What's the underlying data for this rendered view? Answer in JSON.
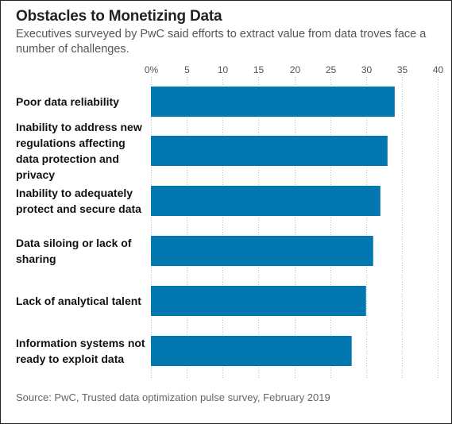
{
  "title": "Obstacles to Monetizing Data",
  "subtitle": "Executives surveyed by PwC said efforts to extract value from data troves face a number of challenges.",
  "source": "Source: PwC, Trusted data optimization pulse survey, February 2019",
  "colors": {
    "bar": "#0277b0",
    "grid": "#bbbbbb",
    "label": "#111111",
    "tick": "#555555"
  },
  "chart_data": {
    "type": "bar",
    "orientation": "horizontal",
    "categories": [
      "Poor data reliability",
      "Inability to address new regulations affecting data protection and privacy",
      "Inability to adequately protect and secure data",
      "Data siloing or lack of sharing",
      "Lack of analytical talent",
      "Information systems not ready to exploit data"
    ],
    "category_lines": [
      [
        "Poor data reliability"
      ],
      [
        "Inability to address new",
        "regulations affecting",
        "data protection and",
        "privacy"
      ],
      [
        "Inability to adequately",
        "protect and secure data"
      ],
      [
        "Data siloing or lack of",
        "sharing"
      ],
      [
        "Lack of analytical talent"
      ],
      [
        "Information systems not",
        "ready to exploit data"
      ]
    ],
    "values": [
      34,
      33,
      32,
      31,
      30,
      28
    ],
    "xlim": [
      0,
      40
    ],
    "ticks": [
      0,
      5,
      10,
      15,
      20,
      25,
      30,
      35,
      40
    ],
    "tick_labels": [
      "0%",
      "5",
      "10",
      "15",
      "20",
      "25",
      "30",
      "35",
      "40"
    ],
    "grid": true,
    "xlabel": "",
    "ylabel": ""
  }
}
